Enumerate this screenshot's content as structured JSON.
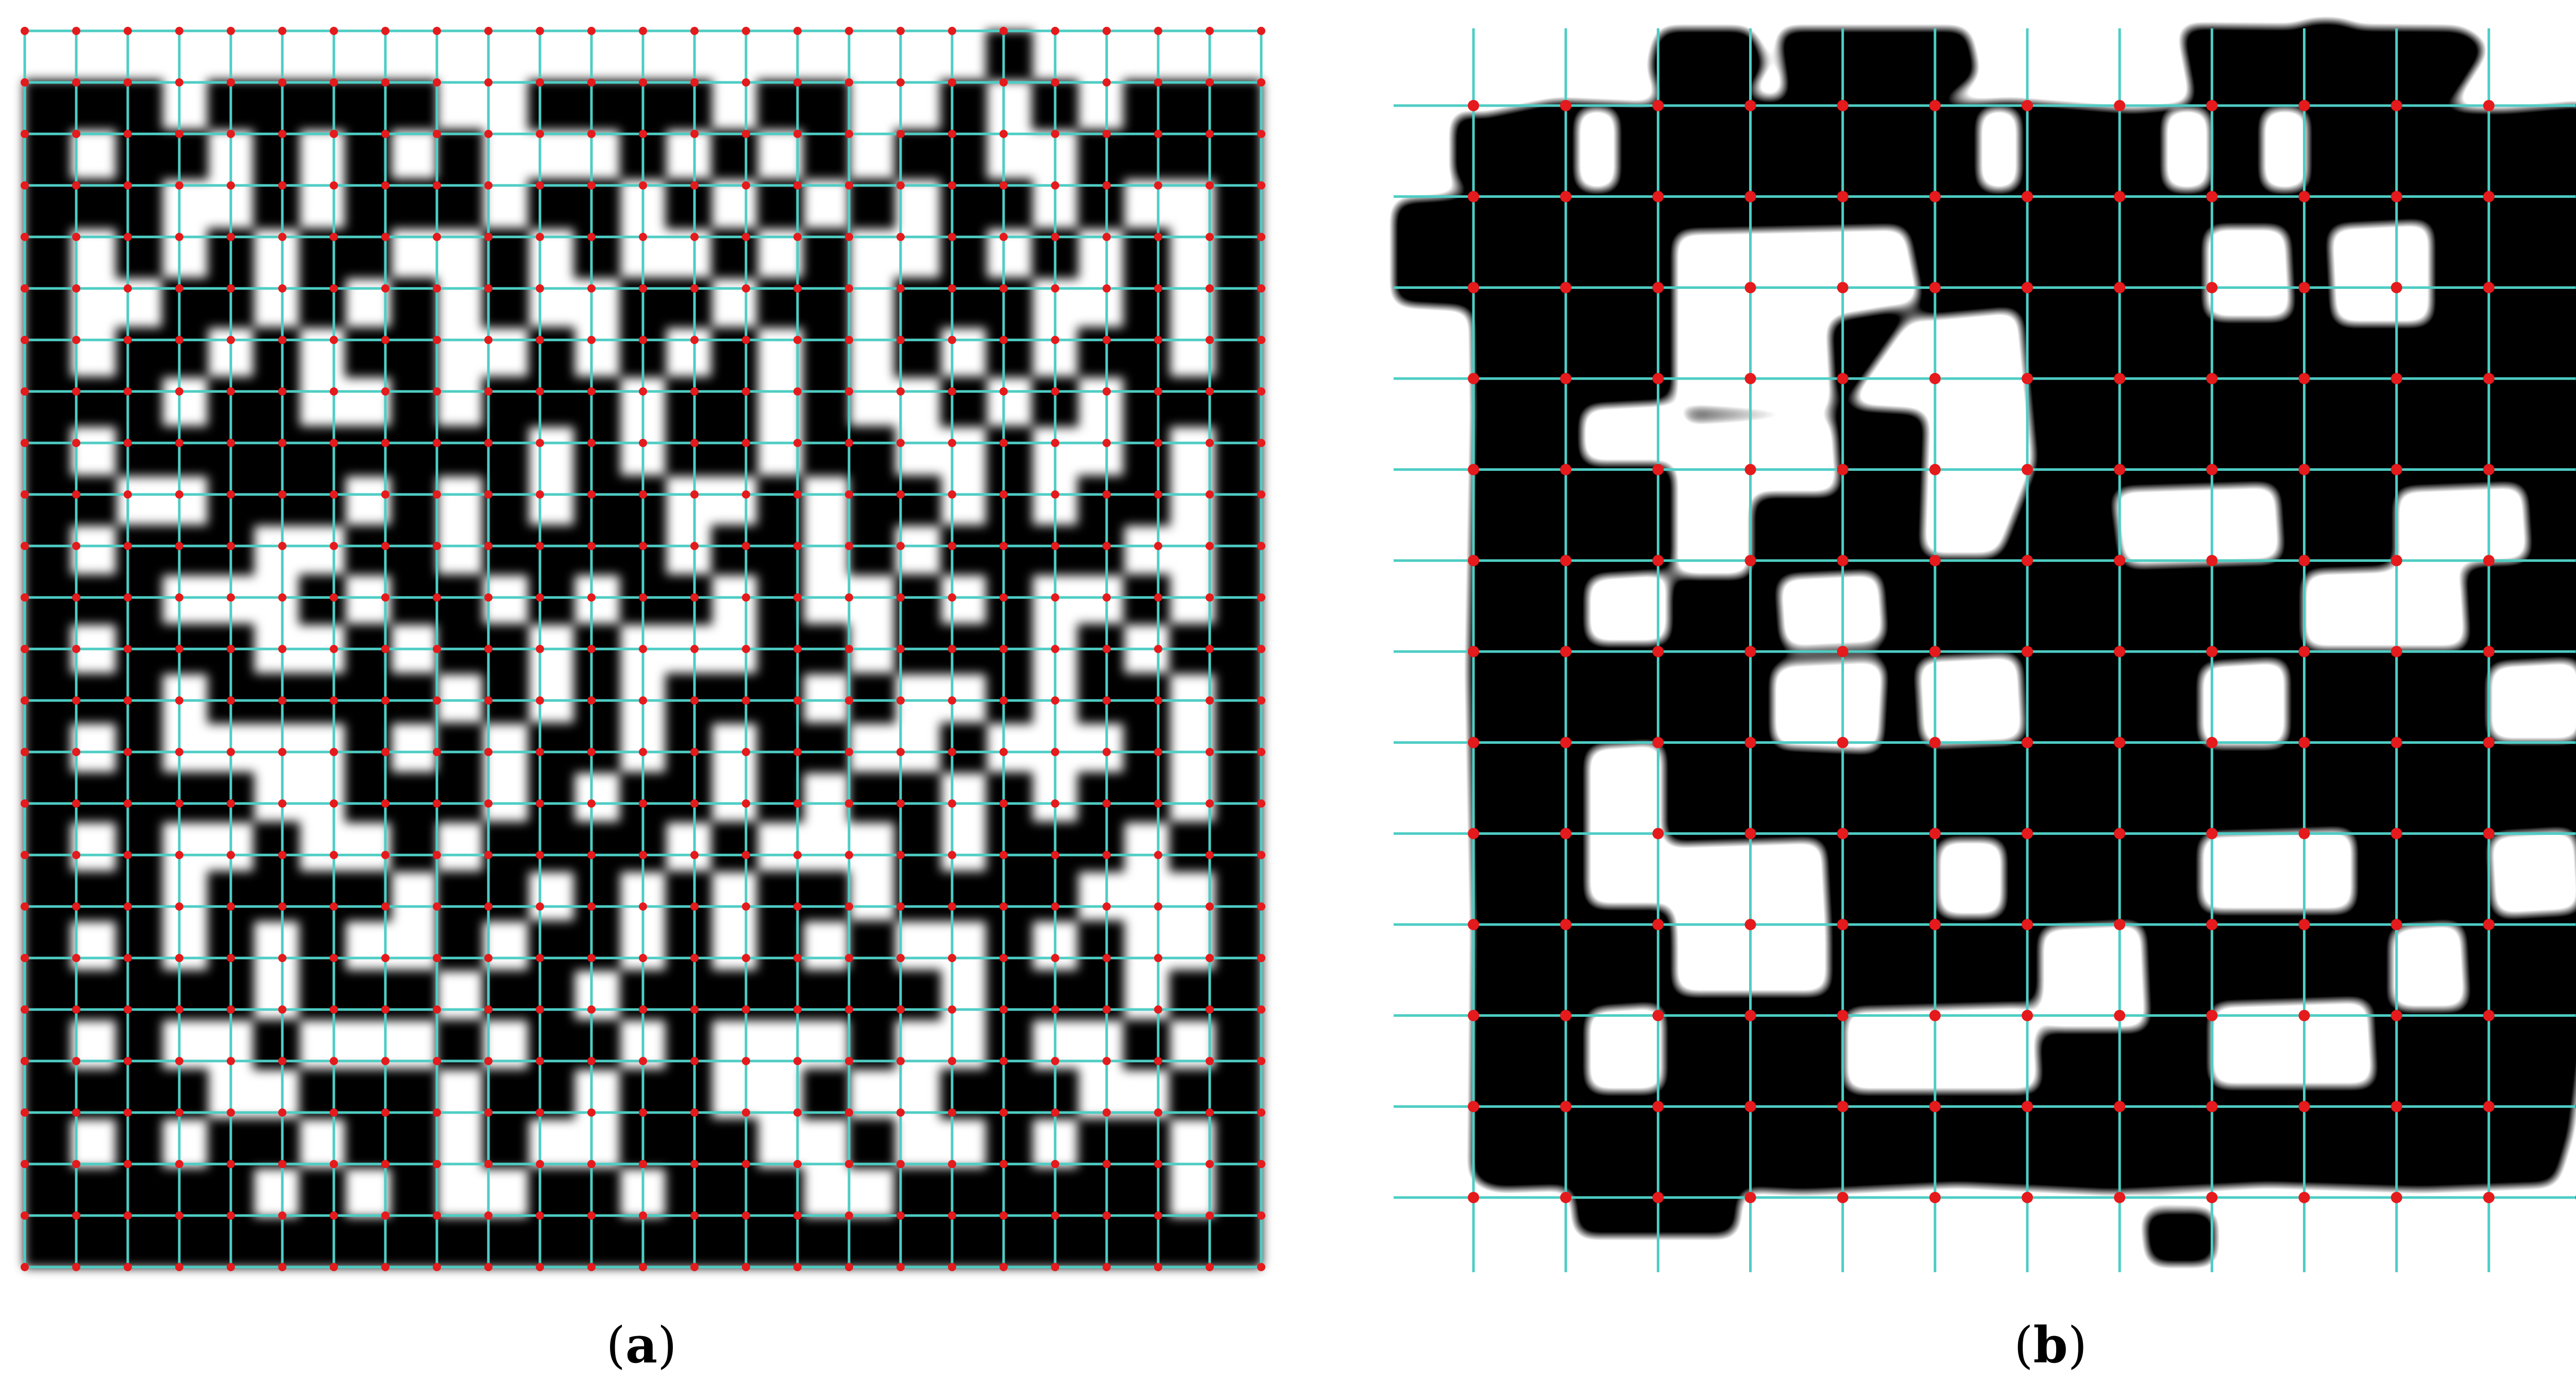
{
  "figure": {
    "panel_a": {
      "caption": {
        "open": "(",
        "letter": "a",
        "close": ")"
      },
      "grid_divisions": 24,
      "module_rows": [
        "000000000000000000000100000",
        "111011111001111011001010111",
        "101101010100010101011001111",
        "111001011101101010101101001",
        "101010110010100101001010101",
        "100110101010011011011100101",
        "101101011001010101010101101",
        "111011001011101101001010111",
        "101111111110101101100100101",
        "110011101010110010110101101",
        "101110011011110110101111001",
        "111000101101011010010100101",
        "101110010110100011011101011",
        "111011111010101110100101101",
        "101000010101101011001000101",
        "111110011101011010110101101",
        "101001001011110100010111011",
        "111011110110101011011110001",
        "101010100101101010100101001",
        "111110111011011111110111011",
        "101001000101101000100100101",
        "111100111011011001001110011",
        "101011011010011100100101101",
        "111110101001101110011111101",
        "111111111111111111111111111"
      ]
    },
    "panel_b": {
      "caption": {
        "open": "(",
        "letter": "b",
        "close": ")"
      },
      "grid_divisions": 12
    },
    "colors": {
      "module_black": "#000000",
      "background": "#ffffff",
      "grid_line": "#4ecdc4",
      "intersection_dot": "#e41a1c"
    }
  }
}
